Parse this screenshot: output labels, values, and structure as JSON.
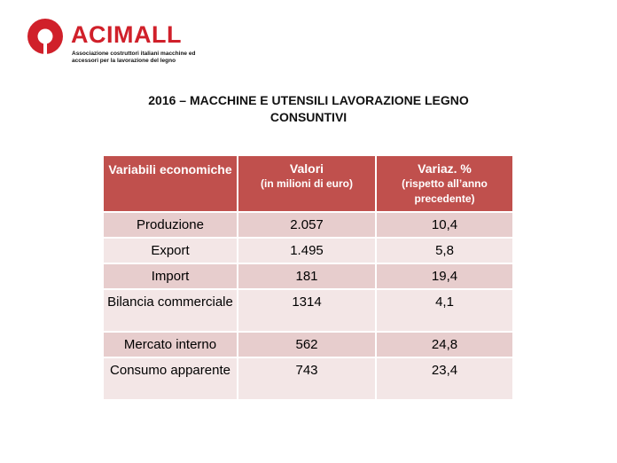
{
  "logo": {
    "wordmark": "ACIMALL",
    "tagline": "Associazione costruttori italiani macchine ed accessori per la lavorazione del legno",
    "mark_icon": "acimall-logo-mark",
    "brand_color": "#d0202a"
  },
  "title": {
    "line1": "2016 – MACCHINE E UTENSILI LAVORAZIONE LEGNO",
    "line2": "CONSUNTIVI"
  },
  "table": {
    "header_color": "#c0504d",
    "row_colors": [
      "#e7cdcd",
      "#f3e6e6"
    ],
    "headers": [
      {
        "main": "Variabili economiche"
      },
      {
        "main": "Valori",
        "sub": "(in milioni di euro)"
      },
      {
        "main": "Variaz. %",
        "sub": "(rispetto all’anno precedente)"
      }
    ],
    "rows": [
      {
        "variable": "Produzione",
        "value": "2.057",
        "change": "10,4"
      },
      {
        "variable": "Export",
        "value": "1.495",
        "change": "5,8"
      },
      {
        "variable": "Import",
        "value": "181",
        "change": "19,4"
      },
      {
        "variable": "Bilancia commerciale",
        "value": "1314",
        "change": "4,1"
      },
      {
        "variable": "Mercato interno",
        "value": "562",
        "change": "24,8"
      },
      {
        "variable": "Consumo apparente",
        "value": "743",
        "change": "23,4"
      }
    ]
  }
}
